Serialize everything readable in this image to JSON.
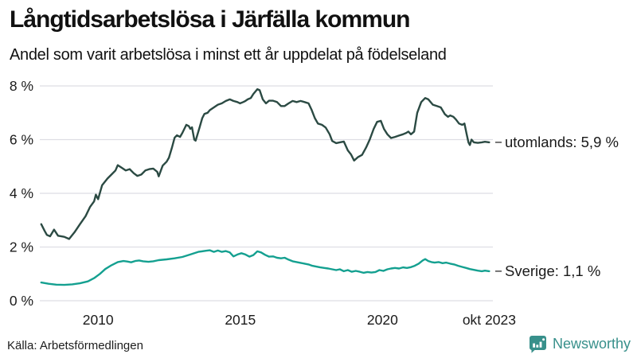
{
  "header": {
    "title": "Långtidsarbetslösa i Järfälla kommun",
    "subtitle": "Andel som varit arbetslösa i minst ett år uppdelat på födelseland"
  },
  "footer": {
    "source": "Källa: Arbetsförmedlingen",
    "brand": "Newsworthy"
  },
  "colors": {
    "utomlands_line": "#2b4a43",
    "sverige_line": "#14a090",
    "gridline": "#dedee4",
    "label_dash": "#3c3c3c",
    "text": "#1a1a1a",
    "brand_teal": "#38908b"
  },
  "chart_data": {
    "type": "line",
    "title": "Långtidsarbetslösa i Järfälla kommun",
    "subtitle": "Andel som varit arbetslösa i minst ett år uppdelat på födelseland",
    "xlabel": "",
    "ylabel": "",
    "grid": true,
    "legend_position": "line-end-labels",
    "xlim": [
      2007.95,
      2023.88
    ],
    "ylim": [
      0,
      8
    ],
    "y_ticks": [
      {
        "label": "0 %",
        "value": 0
      },
      {
        "label": "2 %",
        "value": 2
      },
      {
        "label": "4 %",
        "value": 4
      },
      {
        "label": "6 %",
        "value": 6
      },
      {
        "label": "8 %",
        "value": 8
      }
    ],
    "x_ticks": [
      {
        "label": "2010",
        "year": 2010
      },
      {
        "label": "2015",
        "year": 2015
      },
      {
        "label": "2020",
        "year": 2020
      },
      {
        "label": "okt 2023",
        "year": 2023.75
      }
    ],
    "series": [
      {
        "name": "utomlands",
        "end_label": "utomlands: 5,9 %",
        "last_value_label": "5,9 %",
        "color": "#2b4a43",
        "points": [
          [
            2008.0,
            2.85
          ],
          [
            2008.12,
            2.6
          ],
          [
            2008.2,
            2.45
          ],
          [
            2008.31,
            2.4
          ],
          [
            2008.45,
            2.65
          ],
          [
            2008.59,
            2.42
          ],
          [
            2008.81,
            2.38
          ],
          [
            2008.98,
            2.3
          ],
          [
            2009.17,
            2.55
          ],
          [
            2009.36,
            2.85
          ],
          [
            2009.56,
            3.15
          ],
          [
            2009.72,
            3.5
          ],
          [
            2009.86,
            3.7
          ],
          [
            2009.92,
            3.95
          ],
          [
            2010.0,
            3.78
          ],
          [
            2010.14,
            4.3
          ],
          [
            2010.33,
            4.55
          ],
          [
            2010.47,
            4.7
          ],
          [
            2010.61,
            4.85
          ],
          [
            2010.69,
            5.05
          ],
          [
            2010.83,
            4.95
          ],
          [
            2010.97,
            4.85
          ],
          [
            2011.11,
            4.9
          ],
          [
            2011.25,
            4.75
          ],
          [
            2011.38,
            4.65
          ],
          [
            2011.52,
            4.7
          ],
          [
            2011.66,
            4.85
          ],
          [
            2011.8,
            4.9
          ],
          [
            2011.94,
            4.92
          ],
          [
            2012.08,
            4.8
          ],
          [
            2012.13,
            4.63
          ],
          [
            2012.27,
            5.03
          ],
          [
            2012.41,
            5.18
          ],
          [
            2012.49,
            5.33
          ],
          [
            2012.6,
            5.72
          ],
          [
            2012.69,
            6.07
          ],
          [
            2012.77,
            6.16
          ],
          [
            2012.88,
            6.1
          ],
          [
            2012.96,
            6.25
          ],
          [
            2013.1,
            6.55
          ],
          [
            2013.19,
            6.5
          ],
          [
            2013.24,
            6.4
          ],
          [
            2013.3,
            6.46
          ],
          [
            2013.38,
            6.0
          ],
          [
            2013.43,
            5.96
          ],
          [
            2013.57,
            6.46
          ],
          [
            2013.66,
            6.8
          ],
          [
            2013.74,
            6.96
          ],
          [
            2013.85,
            7.0
          ],
          [
            2013.93,
            7.1
          ],
          [
            2014.07,
            7.2
          ],
          [
            2014.21,
            7.3
          ],
          [
            2014.35,
            7.35
          ],
          [
            2014.49,
            7.44
          ],
          [
            2014.63,
            7.5
          ],
          [
            2014.76,
            7.44
          ],
          [
            2014.9,
            7.4
          ],
          [
            2014.99,
            7.35
          ],
          [
            2015.1,
            7.4
          ],
          [
            2015.18,
            7.44
          ],
          [
            2015.26,
            7.5
          ],
          [
            2015.37,
            7.55
          ],
          [
            2015.46,
            7.7
          ],
          [
            2015.6,
            7.88
          ],
          [
            2015.68,
            7.84
          ],
          [
            2015.79,
            7.5
          ],
          [
            2015.9,
            7.35
          ],
          [
            2016.01,
            7.45
          ],
          [
            2016.15,
            7.45
          ],
          [
            2016.29,
            7.4
          ],
          [
            2016.43,
            7.25
          ],
          [
            2016.56,
            7.25
          ],
          [
            2016.7,
            7.35
          ],
          [
            2016.84,
            7.44
          ],
          [
            2016.98,
            7.4
          ],
          [
            2017.12,
            7.44
          ],
          [
            2017.26,
            7.4
          ],
          [
            2017.4,
            7.35
          ],
          [
            2017.51,
            7.1
          ],
          [
            2017.62,
            6.8
          ],
          [
            2017.73,
            6.6
          ],
          [
            2017.87,
            6.55
          ],
          [
            2018.0,
            6.45
          ],
          [
            2018.14,
            6.2
          ],
          [
            2018.23,
            5.95
          ],
          [
            2018.37,
            5.87
          ],
          [
            2018.5,
            5.9
          ],
          [
            2018.64,
            5.93
          ],
          [
            2018.78,
            5.6
          ],
          [
            2018.89,
            5.45
          ],
          [
            2019.0,
            5.22
          ],
          [
            2019.14,
            5.35
          ],
          [
            2019.28,
            5.43
          ],
          [
            2019.42,
            5.7
          ],
          [
            2019.55,
            6.0
          ],
          [
            2019.69,
            6.4
          ],
          [
            2019.81,
            6.66
          ],
          [
            2019.94,
            6.7
          ],
          [
            2020.05,
            6.4
          ],
          [
            2020.17,
            6.2
          ],
          [
            2020.3,
            6.06
          ],
          [
            2020.44,
            6.1
          ],
          [
            2020.58,
            6.15
          ],
          [
            2020.72,
            6.2
          ],
          [
            2020.83,
            6.25
          ],
          [
            2020.91,
            6.3
          ],
          [
            2021.0,
            6.2
          ],
          [
            2021.11,
            6.3
          ],
          [
            2021.22,
            7.0
          ],
          [
            2021.36,
            7.4
          ],
          [
            2021.5,
            7.55
          ],
          [
            2021.61,
            7.5
          ],
          [
            2021.77,
            7.3
          ],
          [
            2021.91,
            7.25
          ],
          [
            2022.05,
            7.2
          ],
          [
            2022.19,
            6.95
          ],
          [
            2022.3,
            6.85
          ],
          [
            2022.38,
            6.9
          ],
          [
            2022.49,
            6.85
          ],
          [
            2022.58,
            6.75
          ],
          [
            2022.69,
            6.6
          ],
          [
            2022.8,
            6.55
          ],
          [
            2022.88,
            6.6
          ],
          [
            2022.96,
            6.2
          ],
          [
            2023.02,
            5.9
          ],
          [
            2023.07,
            5.8
          ],
          [
            2023.13,
            6.0
          ],
          [
            2023.21,
            5.9
          ],
          [
            2023.35,
            5.88
          ],
          [
            2023.49,
            5.9
          ],
          [
            2023.6,
            5.92
          ],
          [
            2023.75,
            5.9
          ]
        ]
      },
      {
        "name": "Sverige",
        "end_label": "Sverige: 1,1 %",
        "last_value_label": "1,1 %",
        "color": "#14a090",
        "points": [
          [
            2008.0,
            0.68
          ],
          [
            2008.26,
            0.63
          ],
          [
            2008.53,
            0.6
          ],
          [
            2008.81,
            0.59
          ],
          [
            2009.09,
            0.61
          ],
          [
            2009.36,
            0.65
          ],
          [
            2009.64,
            0.72
          ],
          [
            2009.86,
            0.84
          ],
          [
            2010.06,
            1.0
          ],
          [
            2010.25,
            1.18
          ],
          [
            2010.47,
            1.32
          ],
          [
            2010.69,
            1.44
          ],
          [
            2010.89,
            1.48
          ],
          [
            2011.02,
            1.46
          ],
          [
            2011.16,
            1.43
          ],
          [
            2011.3,
            1.48
          ],
          [
            2011.44,
            1.5
          ],
          [
            2011.58,
            1.47
          ],
          [
            2011.77,
            1.45
          ],
          [
            2011.94,
            1.47
          ],
          [
            2012.13,
            1.51
          ],
          [
            2012.41,
            1.54
          ],
          [
            2012.69,
            1.58
          ],
          [
            2012.96,
            1.63
          ],
          [
            2013.24,
            1.72
          ],
          [
            2013.52,
            1.82
          ],
          [
            2013.79,
            1.86
          ],
          [
            2013.93,
            1.88
          ],
          [
            2014.07,
            1.82
          ],
          [
            2014.21,
            1.87
          ],
          [
            2014.35,
            1.82
          ],
          [
            2014.49,
            1.85
          ],
          [
            2014.63,
            1.8
          ],
          [
            2014.76,
            1.65
          ],
          [
            2014.9,
            1.72
          ],
          [
            2015.04,
            1.77
          ],
          [
            2015.18,
            1.72
          ],
          [
            2015.32,
            1.64
          ],
          [
            2015.46,
            1.7
          ],
          [
            2015.6,
            1.84
          ],
          [
            2015.73,
            1.8
          ],
          [
            2015.87,
            1.71
          ],
          [
            2016.01,
            1.64
          ],
          [
            2016.15,
            1.65
          ],
          [
            2016.29,
            1.6
          ],
          [
            2016.43,
            1.58
          ],
          [
            2016.56,
            1.6
          ],
          [
            2016.7,
            1.53
          ],
          [
            2016.84,
            1.47
          ],
          [
            2016.98,
            1.44
          ],
          [
            2017.12,
            1.41
          ],
          [
            2017.26,
            1.38
          ],
          [
            2017.4,
            1.35
          ],
          [
            2017.53,
            1.3
          ],
          [
            2017.67,
            1.27
          ],
          [
            2017.81,
            1.24
          ],
          [
            2017.95,
            1.22
          ],
          [
            2018.09,
            1.2
          ],
          [
            2018.23,
            1.17
          ],
          [
            2018.37,
            1.14
          ],
          [
            2018.5,
            1.17
          ],
          [
            2018.64,
            1.1
          ],
          [
            2018.78,
            1.14
          ],
          [
            2018.92,
            1.08
          ],
          [
            2019.06,
            1.11
          ],
          [
            2019.2,
            1.08
          ],
          [
            2019.33,
            1.04
          ],
          [
            2019.47,
            1.07
          ],
          [
            2019.61,
            1.05
          ],
          [
            2019.75,
            1.07
          ],
          [
            2019.89,
            1.14
          ],
          [
            2020.03,
            1.11
          ],
          [
            2020.17,
            1.17
          ],
          [
            2020.3,
            1.2
          ],
          [
            2020.44,
            1.22
          ],
          [
            2020.58,
            1.2
          ],
          [
            2020.72,
            1.24
          ],
          [
            2020.86,
            1.22
          ],
          [
            2021.0,
            1.25
          ],
          [
            2021.13,
            1.3
          ],
          [
            2021.27,
            1.38
          ],
          [
            2021.41,
            1.5
          ],
          [
            2021.5,
            1.55
          ],
          [
            2021.61,
            1.48
          ],
          [
            2021.72,
            1.44
          ],
          [
            2021.83,
            1.42
          ],
          [
            2021.97,
            1.44
          ],
          [
            2022.11,
            1.4
          ],
          [
            2022.24,
            1.42
          ],
          [
            2022.38,
            1.38
          ],
          [
            2022.52,
            1.35
          ],
          [
            2022.66,
            1.3
          ],
          [
            2022.8,
            1.26
          ],
          [
            2022.94,
            1.22
          ],
          [
            2023.07,
            1.18
          ],
          [
            2023.21,
            1.15
          ],
          [
            2023.35,
            1.12
          ],
          [
            2023.49,
            1.1
          ],
          [
            2023.6,
            1.12
          ],
          [
            2023.75,
            1.1
          ]
        ]
      }
    ]
  }
}
